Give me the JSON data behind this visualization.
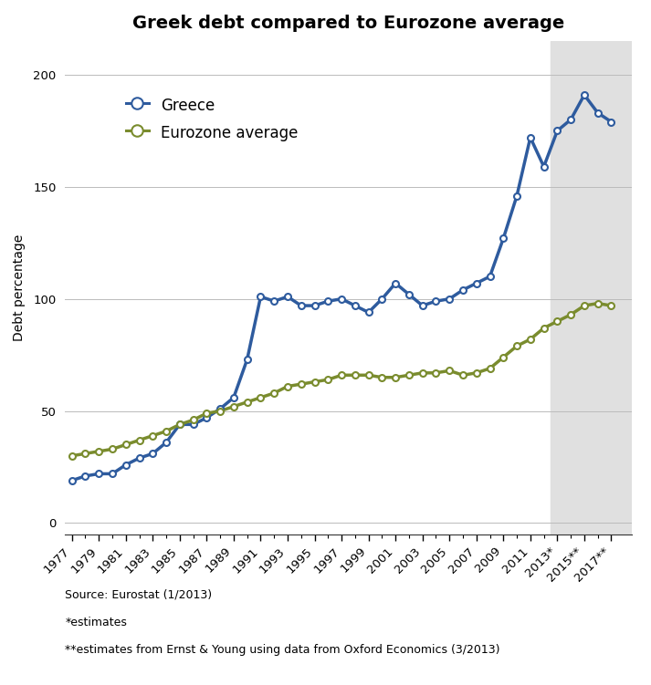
{
  "title": "Greek debt compared to Eurozone average",
  "ylabel": "Debt percentage",
  "greece_years": [
    1977,
    1978,
    1979,
    1980,
    1981,
    1982,
    1983,
    1984,
    1985,
    1986,
    1987,
    1988,
    1989,
    1990,
    1991,
    1992,
    1993,
    1994,
    1995,
    1996,
    1997,
    1998,
    1999,
    2000,
    2001,
    2002,
    2003,
    2004,
    2005,
    2006,
    2007,
    2008,
    2009,
    2010,
    2011,
    2012,
    2013,
    2014,
    2015,
    2016,
    2017
  ],
  "greece_values": [
    19,
    21,
    22,
    22,
    26,
    29,
    31,
    36,
    44,
    44,
    47,
    51,
    56,
    73,
    101,
    99,
    101,
    97,
    97,
    99,
    100,
    97,
    94,
    100,
    107,
    102,
    97,
    99,
    100,
    104,
    107,
    110,
    127,
    146,
    172,
    159,
    175,
    180,
    191,
    183,
    179
  ],
  "eurozone_years": [
    1977,
    1978,
    1979,
    1980,
    1981,
    1982,
    1983,
    1984,
    1985,
    1986,
    1987,
    1988,
    1989,
    1990,
    1991,
    1992,
    1993,
    1994,
    1995,
    1996,
    1997,
    1998,
    1999,
    2000,
    2001,
    2002,
    2003,
    2004,
    2005,
    2006,
    2007,
    2008,
    2009,
    2010,
    2011,
    2012,
    2013,
    2014,
    2015,
    2016,
    2017
  ],
  "eurozone_values": [
    30,
    31,
    32,
    33,
    35,
    37,
    39,
    41,
    44,
    46,
    49,
    50,
    52,
    54,
    56,
    58,
    61,
    62,
    63,
    64,
    66,
    66,
    66,
    65,
    65,
    66,
    67,
    67,
    68,
    66,
    67,
    69,
    74,
    79,
    82,
    87,
    90,
    93,
    97,
    98,
    97
  ],
  "greece_color": "#2e5b9e",
  "eurozone_color": "#7a8c2e",
  "shade_start": 2012.5,
  "shade_end": 2018.5,
  "xtick_labels": [
    "1977",
    "1979",
    "1981",
    "1983",
    "1985",
    "1987",
    "1989",
    "1991",
    "1993",
    "1995",
    "1997",
    "1999",
    "2001",
    "2003",
    "2005",
    "2007",
    "2009",
    "2011",
    "2013*",
    "2015**",
    "2017**"
  ],
  "xtick_positions": [
    1977,
    1979,
    1981,
    1983,
    1985,
    1987,
    1989,
    1991,
    1993,
    1995,
    1997,
    1999,
    2001,
    2003,
    2005,
    2007,
    2009,
    2011,
    2013,
    2015,
    2017
  ],
  "ytick_labels": [
    "0",
    "50",
    "100",
    "150",
    "200"
  ],
  "ytick_positions": [
    0,
    50,
    100,
    150,
    200
  ],
  "ylim": [
    -5,
    215
  ],
  "xlim": [
    1976.5,
    2018.5
  ],
  "footnote1": "Source: Eurostat (1/2013)",
  "footnote2": "*estimates",
  "footnote3": "**estimates from Ernst & Young using data from Oxford Economics (3/2013)",
  "title_fontsize": 14,
  "axis_label_fontsize": 10,
  "tick_fontsize": 9.5,
  "legend_fontsize": 12,
  "footnote_fontsize": 9
}
